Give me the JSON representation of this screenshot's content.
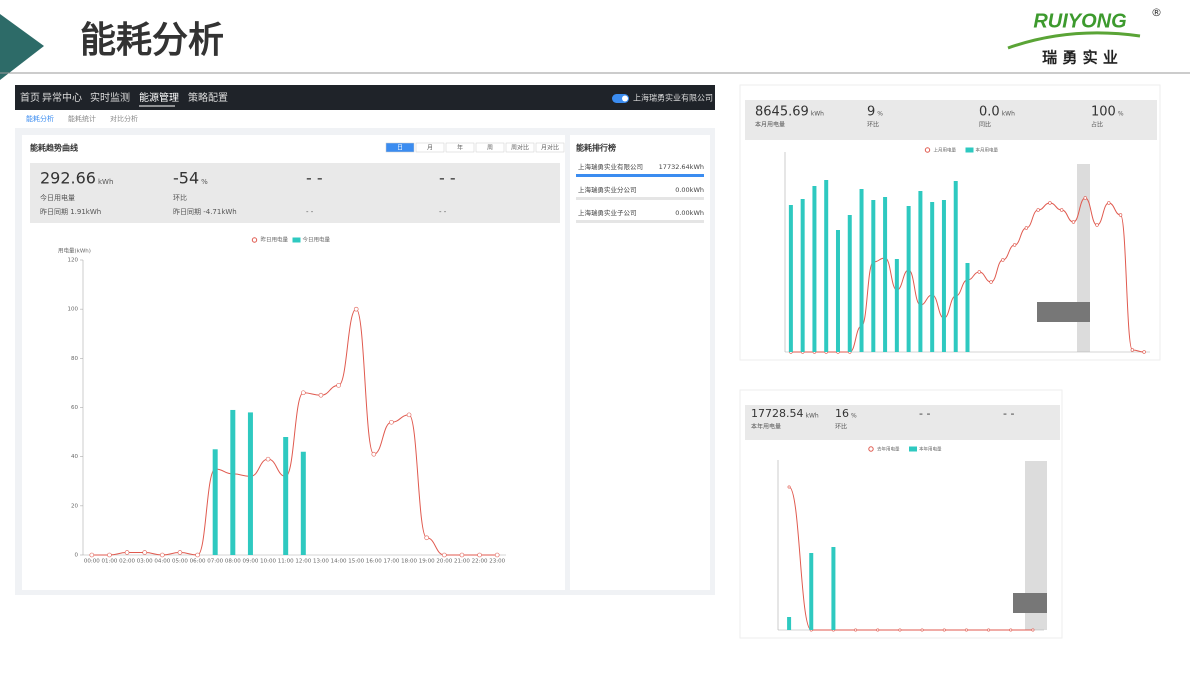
{
  "header": {
    "title": "能耗分析",
    "logo": "RUIYONG",
    "logo_mark": "®",
    "logo_sub": "瑞 勇 实 业"
  },
  "main": {
    "nav": [
      "首页",
      "异常中心",
      "实时监测",
      "能源管理",
      "策略配置"
    ],
    "company": "上海瑞勇实业有限公司",
    "tabs": [
      "能耗分析",
      "能耗统计",
      "对比分析"
    ],
    "panel_title": "能耗趋势曲线",
    "periods": [
      "日",
      "月",
      "年",
      "周",
      "周对比",
      "月对比"
    ],
    "stats": [
      {
        "value": "292.66",
        "unit": "kWh",
        "label": "今日用电量",
        "sub": "昨日同期 1.91kWh"
      },
      {
        "value": "-54",
        "unit": "%",
        "label": "环比",
        "sub": "昨日同期 -4.71kWh"
      },
      {
        "value": "- -",
        "sub": "- -"
      },
      {
        "value": "- -",
        "sub": "- -"
      }
    ],
    "ranking_title": "能耗排行榜",
    "ranking": [
      {
        "name": "上海瑞勇实业有限公司",
        "value": "17732.64kWh"
      },
      {
        "name": "上海瑞勇实业分公司",
        "value": "0.00kWh"
      },
      {
        "name": "上海瑞勇实业子公司",
        "value": "0.00kWh"
      }
    ],
    "chart": {
      "type": "bar-line",
      "y_label": "用电量(kWh)",
      "categories": [
        "00:00",
        "01:00",
        "02:00",
        "03:00",
        "04:00",
        "05:00",
        "06:00",
        "07:00",
        "08:00",
        "09:00",
        "10:00",
        "11:00",
        "12:00",
        "13:00",
        "14:00",
        "15:00",
        "16:00",
        "17:00",
        "18:00",
        "19:00",
        "20:00",
        "21:00",
        "22:00",
        "23:00"
      ],
      "series": [
        {
          "name": "昨日用电量",
          "kind": "line",
          "color": "#e05a4f",
          "values": [
            0,
            0,
            1,
            1,
            0,
            1,
            0,
            35,
            33,
            32,
            39,
            32,
            66,
            65,
            69,
            100,
            41,
            54,
            57,
            7,
            0,
            0,
            0,
            0
          ]
        },
        {
          "name": "今日用电量",
          "kind": "bar",
          "color": "#2ec9c0",
          "values": [
            null,
            null,
            null,
            null,
            null,
            null,
            null,
            43,
            59,
            58,
            null,
            48,
            42,
            null,
            null,
            null,
            null,
            null,
            null,
            null,
            null,
            null,
            null,
            null
          ]
        }
      ],
      "ylim": [
        0,
        120
      ],
      "yticks": [
        0,
        20,
        40,
        60,
        80,
        100,
        120
      ]
    }
  },
  "month": {
    "stats": [
      {
        "value": "8645.69",
        "unit": "kWh",
        "label": "本月用电量"
      },
      {
        "value": "9",
        "unit": "%",
        "label": "环比"
      },
      {
        "value": "0.0",
        "unit": "kWh",
        "label": "同比"
      },
      {
        "value": "100",
        "unit": "%",
        "label": "占比"
      }
    ],
    "chart": {
      "type": "bar-line",
      "categories": [
        null,
        null,
        null,
        null,
        null,
        null,
        null,
        null,
        null,
        null,
        null,
        null,
        null,
        null,
        null,
        null,
        null,
        null,
        null,
        null,
        null,
        null,
        null,
        null,
        null,
        null,
        null,
        null,
        null,
        null,
        null
      ],
      "series": [
        {
          "name": "上月用电量",
          "kind": "line",
          "color": "#e05a4f",
          "values": [
            0,
            0,
            0,
            0,
            0,
            0,
            26,
            90,
            94,
            62,
            82,
            47,
            57,
            34,
            56,
            72,
            80,
            70,
            92,
            107,
            124,
            142,
            149,
            142,
            130,
            154,
            127,
            149,
            137,
            2,
            0
          ]
        },
        {
          "name": "本月用电量",
          "kind": "bar",
          "color": "#2ec9c0",
          "values": [
            147,
            153,
            166,
            172,
            122,
            137,
            163,
            152,
            155,
            93,
            146,
            161,
            150,
            152,
            171,
            89,
            null,
            null,
            null,
            null,
            null,
            null,
            null,
            null,
            null,
            null,
            null,
            null,
            null,
            null,
            null
          ]
        }
      ],
      "ylim": [
        0,
        200
      ]
    }
  },
  "year": {
    "stats": [
      {
        "value": "17728.54",
        "unit": "kWh",
        "label": "本年用电量"
      },
      {
        "value": "16",
        "unit": "%",
        "label": "环比"
      },
      {
        "value": "- -"
      },
      {
        "value": "- -"
      }
    ],
    "chart": {
      "type": "bar-line",
      "categories": [
        null,
        null,
        null,
        null,
        null,
        null,
        null,
        null,
        null,
        null,
        null,
        null
      ],
      "series": [
        {
          "name": "去年用电量",
          "kind": "line",
          "color": "#e05a4f",
          "values": [
            143,
            0,
            0,
            0,
            0,
            0,
            0,
            0,
            0,
            0,
            0,
            0
          ]
        },
        {
          "name": "本年用电量",
          "kind": "bar",
          "color": "#2ec9c0",
          "values": [
            13,
            77,
            83,
            null,
            null,
            null,
            null,
            null,
            null,
            null,
            null,
            null
          ]
        }
      ],
      "ylim": [
        0,
        170
      ]
    }
  }
}
